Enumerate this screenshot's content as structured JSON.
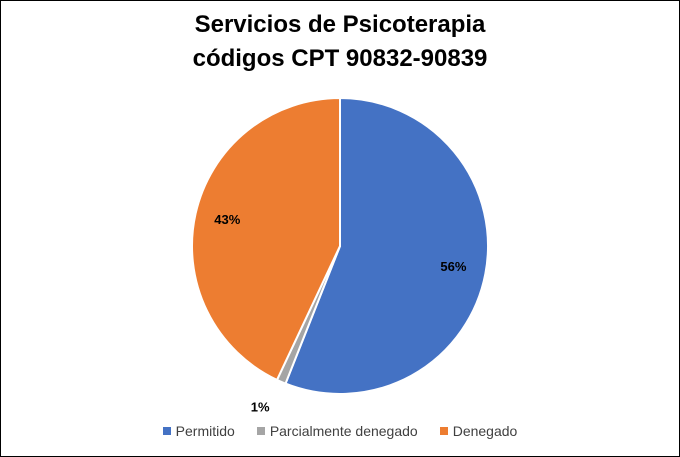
{
  "chart_data": {
    "type": "pie",
    "title_lines": [
      "Servicios de Psicoterapia",
      "códigos CPT 90832-90839"
    ],
    "categories": [
      "Permitido",
      "Parcialmente denegado",
      "Denegado"
    ],
    "values": [
      56,
      1,
      43
    ],
    "labels": [
      "56%",
      "1%",
      "43%"
    ],
    "colors": [
      "#4472C4",
      "#A5A5A5",
      "#ED7D31"
    ],
    "legend_position": "bottom"
  }
}
